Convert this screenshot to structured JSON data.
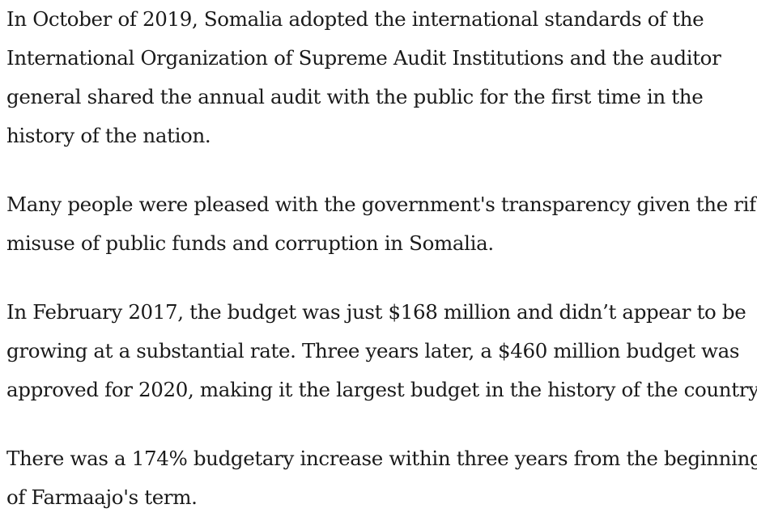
{
  "article": {
    "paragraphs": [
      {
        "lines": [
          "In October of 2019, Somalia adopted the international standards of the",
          "International Organization of Supreme Audit Institutions and the auditor",
          "general shared the annual audit with the public for the first time in the",
          "history of the nation."
        ]
      },
      {
        "lines": [
          "Many people were pleased with the government's transparency given the rife",
          "misuse of public funds and corruption in Somalia."
        ]
      },
      {
        "lines": [
          "In February 2017, the budget was just $168 million and didn’t appear to be",
          "growing at a substantial rate. Three years later, a $460 million budget was",
          "approved for 2020, making it the largest budget in the history of the country."
        ]
      },
      {
        "lines": [
          "There was a 174% budgetary increase within three years from the beginning",
          "of Farmaajo's term."
        ]
      }
    ]
  }
}
